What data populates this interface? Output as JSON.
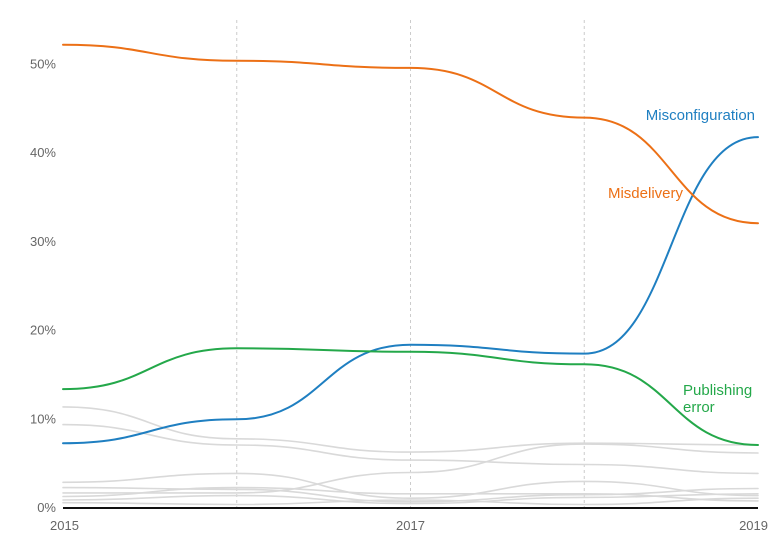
{
  "chart_data": {
    "type": "line",
    "title": "",
    "xlabel": "",
    "ylabel": "",
    "x": [
      2015,
      2016,
      2017,
      2018,
      2019
    ],
    "x_ticks": [
      {
        "value": 2015,
        "label": "2015"
      },
      {
        "value": 2017,
        "label": "2017"
      },
      {
        "value": 2019,
        "label": "2019"
      }
    ],
    "vertical_gridlines_at": [
      2016,
      2017,
      2018
    ],
    "ylim": [
      0,
      55
    ],
    "y_ticks": [
      {
        "value": 0,
        "label": "0%"
      },
      {
        "value": 10,
        "label": "10%"
      },
      {
        "value": 20,
        "label": "20%"
      },
      {
        "value": 30,
        "label": "30%"
      },
      {
        "value": 40,
        "label": "40%"
      },
      {
        "value": 50,
        "label": "50%"
      }
    ],
    "grid": "vertical dashed",
    "series": [
      {
        "name": "Misconfiguration",
        "label_lines": [
          "Misconfiguration"
        ],
        "color": "#1f7fc1",
        "highlight": true,
        "values": [
          7.3,
          10.0,
          18.4,
          17.4,
          41.8
        ]
      },
      {
        "name": "Misdelivery",
        "label_lines": [
          "Misdelivery"
        ],
        "color": "#ec7016",
        "highlight": true,
        "values": [
          52.2,
          50.4,
          49.6,
          44.0,
          32.1
        ]
      },
      {
        "name": "Publishing error",
        "label_lines": [
          "Publishing",
          "error"
        ],
        "color": "#24a84a",
        "highlight": true,
        "values": [
          13.4,
          18.0,
          17.6,
          16.2,
          7.1
        ]
      },
      {
        "color": "#d9d9d9",
        "highlight": false,
        "values": [
          11.4,
          7.8,
          6.3,
          7.3,
          7.1
        ]
      },
      {
        "color": "#d9d9d9",
        "highlight": false,
        "values": [
          9.4,
          7.1,
          5.4,
          4.9,
          3.9
        ]
      },
      {
        "color": "#d9d9d9",
        "highlight": false,
        "values": [
          2.9,
          3.9,
          1.1,
          3.0,
          1.4
        ]
      },
      {
        "color": "#d9d9d9",
        "highlight": false,
        "values": [
          2.3,
          2.1,
          0.7,
          1.5,
          2.2
        ]
      },
      {
        "color": "#d9d9d9",
        "highlight": false,
        "values": [
          1.7,
          1.7,
          4.0,
          7.2,
          6.2
        ]
      },
      {
        "color": "#d9d9d9",
        "highlight": false,
        "values": [
          1.3,
          2.3,
          1.6,
          1.6,
          0.8
        ]
      },
      {
        "color": "#d9d9d9",
        "highlight": false,
        "values": [
          0.9,
          1.4,
          0.5,
          1.2,
          1.6
        ]
      },
      {
        "color": "#d9d9d9",
        "highlight": false,
        "values": [
          0.6,
          0.4,
          0.9,
          0.4,
          1.1
        ]
      }
    ],
    "axis_color": "#111111",
    "gridline_color": "#cccccc"
  }
}
